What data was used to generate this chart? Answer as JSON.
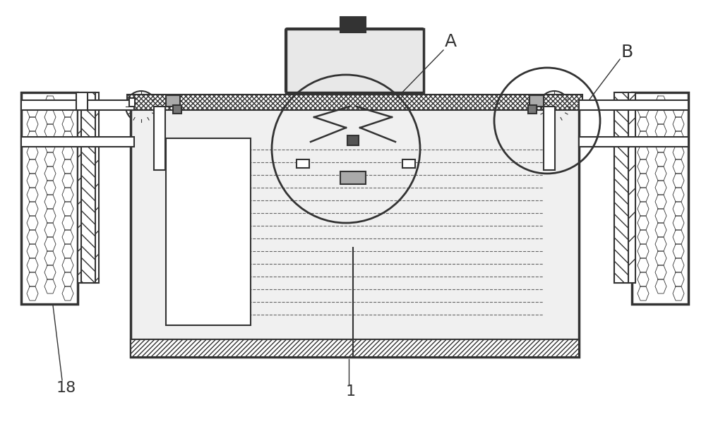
{
  "bg_color": "#ffffff",
  "line_color": "#333333",
  "hatch_color": "#555555",
  "label_A": "A",
  "label_B": "B",
  "label_1": "1",
  "label_18": "18",
  "title_fontsize": 14,
  "label_fontsize": 16,
  "fig_width": 10.0,
  "fig_height": 6.01,
  "dpi": 100
}
